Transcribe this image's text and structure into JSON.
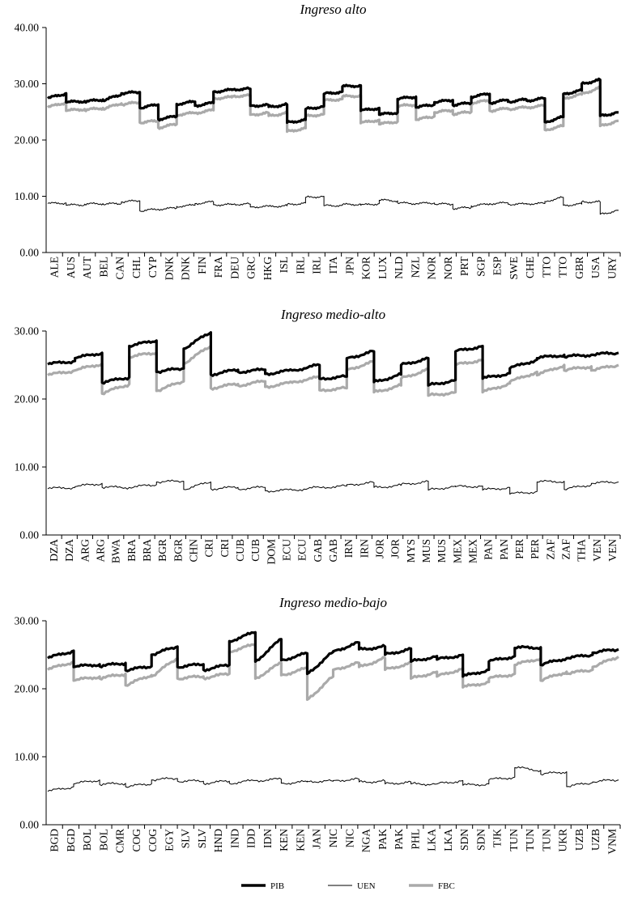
{
  "chart_data": [
    {
      "type": "line",
      "title": "Ingreso alto",
      "ylim": [
        0,
        40
      ],
      "yticks": [
        "0.00",
        "10.00",
        "20.00",
        "30.00",
        "40.00"
      ],
      "categories": [
        "ALE",
        "AUS",
        "AUT",
        "BEL",
        "CAN",
        "CHL",
        "CYP",
        "DNK",
        "FIN",
        "FRA",
        "DEU",
        "GRC",
        "HKG",
        "ISL",
        "IRL",
        "ITA",
        "JPN",
        "KOR",
        "LUX",
        "NLD",
        "NZL",
        "NOR",
        "PRT",
        "SGP",
        "ESP",
        "SWE",
        "CHE",
        "TTO",
        "GBR",
        "USA",
        "URY"
      ],
      "tick_labels": [
        "ALE",
        "AUS",
        "AUT",
        "BEL",
        "CAN",
        "CHL",
        "CYP",
        "DNK",
        "DNK",
        "FIN",
        "FRA",
        "DEU",
        "GRC",
        "HKG",
        "ISL",
        "IRL",
        "IRL",
        "ITA",
        "JPN",
        "KOR",
        "LUX",
        "NLD",
        "NZL",
        "NOR",
        "NOR",
        "PRT",
        "SGP",
        "ESP",
        "SWE",
        "CHE",
        "TTO",
        "TTO",
        "GBR",
        "USA",
        "URY"
      ],
      "series": [
        {
          "name": "PIB",
          "start": [
            27.4,
            26.7,
            26.8,
            27.0,
            28.3,
            25.7,
            23.7,
            26.4,
            26.1,
            28.6,
            29.0,
            26.1,
            25.9,
            23.1,
            25.5,
            28.2,
            29.5,
            25.2,
            24.5,
            27.3,
            25.8,
            26.7,
            26.2,
            27.7,
            26.6,
            26.8,
            27.0,
            23.2,
            28.2,
            30.0,
            24.3
          ],
          "end": [
            28.3,
            26.9,
            27.2,
            28.1,
            28.5,
            26.3,
            24.2,
            26.8,
            26.6,
            28.9,
            29.1,
            26.2,
            26.3,
            23.6,
            26.0,
            28.6,
            29.7,
            25.7,
            24.9,
            27.7,
            26.3,
            27.1,
            26.6,
            28.2,
            27.1,
            27.2,
            27.4,
            24.1,
            28.8,
            30.7,
            24.9
          ]
        },
        {
          "name": "UEN",
          "start": [
            8.7,
            8.4,
            8.6,
            8.6,
            9.0,
            7.4,
            7.7,
            8.2,
            8.7,
            8.5,
            8.6,
            8.1,
            8.2,
            8.5,
            9.8,
            8.3,
            8.5,
            8.4,
            9.3,
            8.8,
            8.7,
            8.6,
            7.8,
            8.3,
            8.7,
            8.6,
            8.7,
            9.1,
            8.4,
            9.0,
            6.8
          ],
          "end": [
            8.8,
            8.5,
            8.7,
            8.7,
            9.2,
            7.7,
            7.9,
            8.4,
            9.0,
            8.5,
            8.6,
            8.2,
            8.3,
            8.8,
            10.0,
            8.4,
            8.6,
            8.7,
            9.2,
            8.7,
            8.8,
            8.6,
            8.0,
            8.6,
            8.8,
            8.6,
            8.7,
            9.8,
            8.6,
            9.0,
            7.5
          ]
        },
        {
          "name": "FBC",
          "start": [
            25.8,
            25.2,
            25.3,
            25.5,
            26.3,
            23.1,
            22.2,
            24.5,
            24.8,
            27.4,
            27.8,
            24.5,
            24.3,
            21.5,
            24.2,
            27.0,
            27.7,
            23.0,
            22.8,
            26.0,
            23.6,
            24.9,
            24.6,
            26.6,
            25.2,
            25.5,
            25.8,
            21.8,
            27.4,
            28.2,
            22.5
          ],
          "end": [
            26.7,
            25.5,
            25.7,
            26.5,
            26.7,
            23.4,
            22.8,
            24.8,
            25.3,
            27.6,
            27.9,
            24.8,
            24.8,
            22.1,
            24.6,
            27.3,
            27.9,
            23.6,
            23.3,
            26.3,
            24.2,
            25.3,
            25.0,
            27.0,
            25.6,
            25.8,
            26.1,
            22.5,
            28.1,
            29.3,
            23.4
          ]
        }
      ]
    },
    {
      "type": "line",
      "title": "Ingreso medio-alto",
      "ylim": [
        0,
        30
      ],
      "yticks": [
        "0.00",
        "10.00",
        "20.00",
        "30.00"
      ],
      "categories": [
        "DZA",
        "ARG",
        "BWA",
        "BRA",
        "BGR",
        "CHN",
        "CRI",
        "CUB",
        "DOM",
        "ECU",
        "GAB",
        "IRN",
        "JOR",
        "MYS",
        "MUS",
        "MEX",
        "PAN",
        "PER",
        "ZAF",
        "THA",
        "VEN"
      ],
      "tick_labels": [
        "DZA",
        "DZA",
        "ARG",
        "ARG",
        "BWA",
        "BRA",
        "BRA",
        "BGR",
        "BGR",
        "CHN",
        "CRI",
        "CRI",
        "CUB",
        "CUB",
        "DOM",
        "ECU",
        "ECU",
        "GAB",
        "GAB",
        "IRN",
        "IRN",
        "JOR",
        "JOR",
        "MYS",
        "MUS",
        "MUS",
        "MEX",
        "MEX",
        "PAN",
        "PAN",
        "PER",
        "PER",
        "ZAF",
        "ZAF",
        "THA",
        "VEN",
        "VEN"
      ],
      "series": [
        {
          "name": "PIB",
          "start": [
            25.1,
            26.0,
            22.4,
            27.8,
            24.0,
            27.4,
            23.6,
            24.0,
            23.7,
            24.2,
            23.0,
            26.0,
            22.5,
            25.0,
            22.0,
            27.0,
            23.0,
            24.5,
            26.0,
            26.2,
            26.5
          ],
          "end": [
            25.6,
            26.8,
            23.2,
            28.6,
            24.5,
            29.8,
            24.3,
            24.3,
            24.2,
            25.0,
            23.3,
            27.0,
            23.6,
            26.0,
            22.8,
            27.8,
            23.8,
            25.8,
            26.5,
            26.5,
            26.8
          ]
        },
        {
          "name": "FBC",
          "start": [
            23.5,
            24.2,
            20.8,
            26.2,
            21.2,
            25.2,
            21.6,
            22.0,
            21.8,
            22.5,
            21.3,
            24.3,
            21.0,
            23.0,
            20.5,
            25.0,
            21.0,
            22.5,
            23.5,
            24.2,
            24.2
          ],
          "end": [
            24.2,
            25.2,
            22.2,
            26.8,
            22.6,
            27.8,
            22.2,
            22.6,
            22.4,
            23.2,
            21.6,
            25.5,
            22.0,
            24.4,
            21.0,
            25.8,
            22.3,
            24.0,
            25.0,
            24.8,
            25.0
          ]
        },
        {
          "name": "UEN",
          "start": [
            6.8,
            7.1,
            7.0,
            7.0,
            7.8,
            6.7,
            6.8,
            6.8,
            6.5,
            6.6,
            7.0,
            7.4,
            7.0,
            7.4,
            6.6,
            7.1,
            6.6,
            6.0,
            7.8,
            6.7,
            7.6
          ],
          "end": [
            7.0,
            7.6,
            7.0,
            7.4,
            7.9,
            7.8,
            7.0,
            7.0,
            6.6,
            7.0,
            7.2,
            7.7,
            7.3,
            7.9,
            7.2,
            7.2,
            7.0,
            6.4,
            7.9,
            7.4,
            7.8
          ]
        }
      ]
    },
    {
      "type": "line",
      "title": "Ingreso medio-bajo",
      "ylim": [
        0,
        30
      ],
      "yticks": [
        "0.00",
        "10.00",
        "20.00",
        "30.00"
      ],
      "categories": [
        "BGD",
        "BOL",
        "CMR",
        "COG",
        "EGY",
        "SLV",
        "HND",
        "IND",
        "IDN",
        "KEN",
        "JAN",
        "NIC",
        "NGA",
        "PAK",
        "PHL",
        "LKA",
        "SDN",
        "TJK",
        "TUN",
        "UKR",
        "UZB",
        "VNM"
      ],
      "tick_labels": [
        "BGD",
        "BGD",
        "BOL",
        "BOL",
        "CMR",
        "COG",
        "COG",
        "EGY",
        "SLV",
        "SLV",
        "HND",
        "IND",
        "IDD",
        "IDN",
        "KEN",
        "KEN",
        "JAN",
        "NIC",
        "NIC",
        "NGA",
        "PAK",
        "PAK",
        "PHL",
        "LKA",
        "LKA",
        "SDN",
        "SDN",
        "TJK",
        "TUN",
        "TUN",
        "TUN",
        "UKR",
        "UZB",
        "UZB",
        "VNM"
      ],
      "series": [
        {
          "name": "PIB",
          "start": [
            24.5,
            23.2,
            23.3,
            22.7,
            25.0,
            23.2,
            22.8,
            27.0,
            24.0,
            24.2,
            22.2,
            25.5,
            25.8,
            25.0,
            24.0,
            24.3,
            21.8,
            24.0,
            26.0,
            23.5,
            24.5,
            25.3
          ],
          "end": [
            25.6,
            23.6,
            23.8,
            23.3,
            26.2,
            23.6,
            23.5,
            28.3,
            27.3,
            25.2,
            25.4,
            26.8,
            26.2,
            25.9,
            24.8,
            25.0,
            22.8,
            24.8,
            26.1,
            24.5,
            25.0,
            25.8
          ]
        },
        {
          "name": "FBC",
          "start": [
            22.8,
            21.2,
            21.5,
            20.5,
            21.8,
            21.5,
            21.6,
            25.5,
            21.5,
            22.0,
            18.4,
            22.8,
            23.2,
            22.8,
            21.5,
            21.8,
            20.2,
            21.5,
            23.5,
            21.2,
            22.2,
            23.2
          ],
          "end": [
            24.0,
            21.8,
            22.2,
            22.0,
            24.5,
            21.8,
            22.2,
            26.5,
            23.8,
            23.0,
            21.8,
            23.8,
            24.5,
            23.8,
            22.5,
            23.0,
            21.0,
            22.2,
            24.5,
            22.5,
            22.8,
            24.7
          ]
        },
        {
          "name": "UEN",
          "start": [
            4.9,
            6.0,
            5.9,
            5.6,
            6.6,
            6.4,
            6.1,
            6.1,
            6.5,
            6.1,
            6.4,
            6.5,
            6.3,
            6.0,
            6.0,
            6.0,
            5.8,
            6.6,
            8.4,
            7.4,
            5.6,
            6.3
          ],
          "end": [
            5.6,
            6.6,
            6.1,
            6.0,
            6.8,
            6.4,
            6.4,
            6.5,
            6.7,
            6.3,
            6.4,
            6.7,
            6.4,
            6.3,
            6.0,
            6.5,
            6.0,
            7.0,
            8.0,
            7.8,
            6.2,
            6.6
          ]
        }
      ]
    }
  ],
  "legend": [
    {
      "name": "PIB",
      "color": "#000000",
      "width": 3.5
    },
    {
      "name": "UEN",
      "color": "#000000",
      "width": 1
    },
    {
      "name": "FBC",
      "color": "#aaaaaa",
      "width": 3.5
    }
  ]
}
